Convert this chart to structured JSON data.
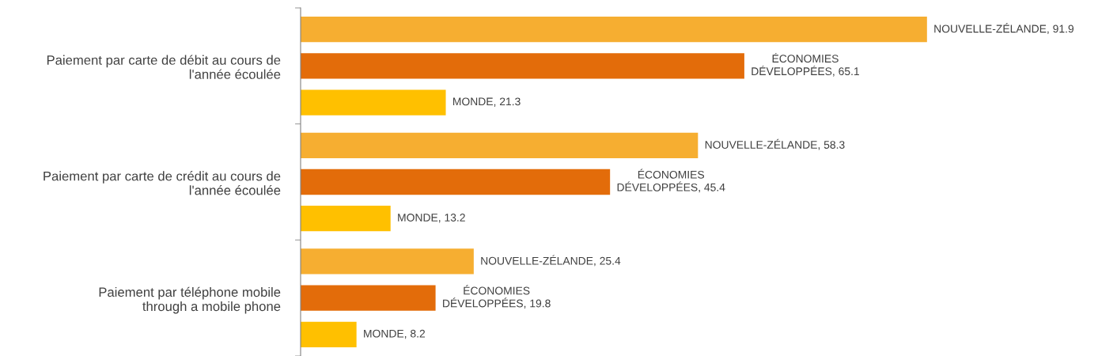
{
  "chart_data": {
    "type": "bar",
    "orientation": "horizontal",
    "categories": [
      "Paiement par carte de débit au cours de\nl'année écoulée",
      "Paiement par carte de crédit au cours de\nl'année écoulée",
      "Paiement par téléphone mobile\nthrough a mobile phone"
    ],
    "grid": false,
    "legend": false,
    "tick_labels": "y",
    "series": [
      {
        "color": "#f6ae31",
        "values": [
          91.9,
          58.3,
          25.4
        ],
        "value_labels": [
          "NOUVELLE-ZÉLANDE, 91.9",
          "NOUVELLE-ZÉLANDE, 58.3",
          "NOUVELLE-ZÉLANDE, 25.4"
        ]
      },
      {
        "color": "#e36c0a",
        "values": [
          65.1,
          45.4,
          19.8
        ],
        "value_labels": [
          "ÉCONOMIES\nDÉVELOPPÉES, 65.1",
          "ÉCONOMIES\nDÉVELOPPÉES, 45.4",
          "ÉCONOMIES\nDÉVELOPPÉES, 19.8"
        ]
      },
      {
        "color": "#ffc000",
        "values": [
          21.3,
          13.2,
          8.2
        ],
        "value_labels": [
          "MONDE, 21.3",
          "MONDE, 13.2",
          "MONDE, 8.2"
        ]
      }
    ]
  }
}
